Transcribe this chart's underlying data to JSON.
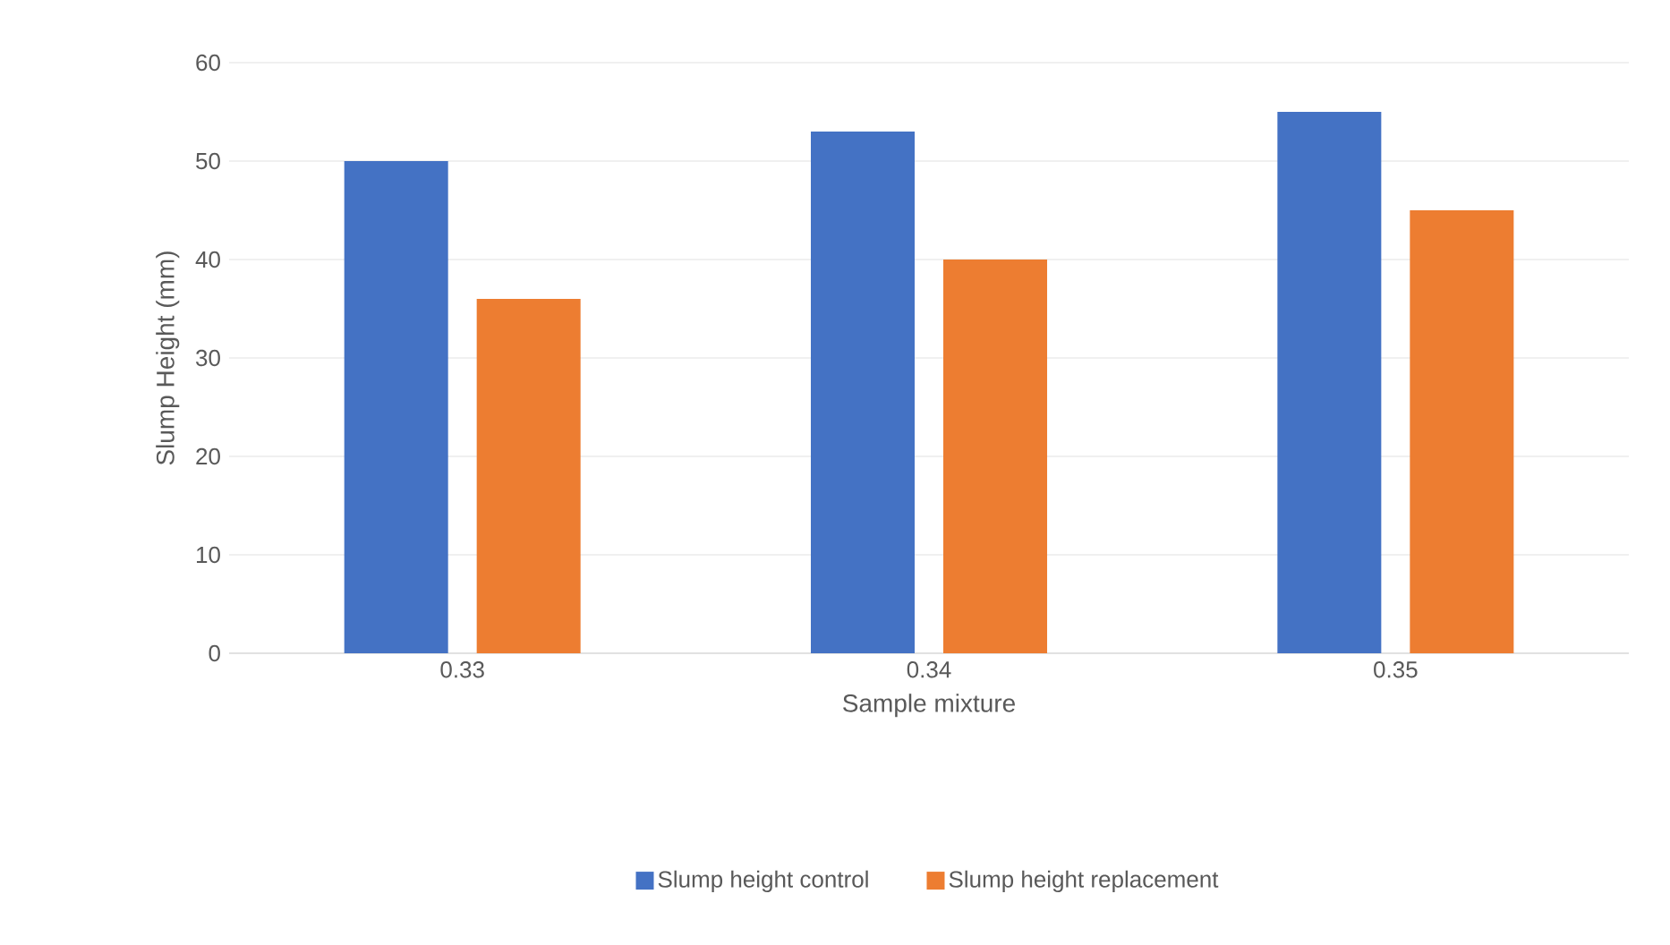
{
  "chart_data": {
    "type": "bar",
    "xlabel": "Sample mixture",
    "ylabel": "Slump Height (mm)",
    "categories": [
      "0.33",
      "0.34",
      "0.35"
    ],
    "series": [
      {
        "name": "Slump height control",
        "color": "#4472c4",
        "values": [
          50,
          53,
          55
        ]
      },
      {
        "name": "Slump height replacement",
        "color": "#ed7d31",
        "values": [
          36,
          40,
          45
        ]
      }
    ],
    "ylim": [
      0,
      60
    ],
    "yticks": [
      0,
      10,
      20,
      30,
      40,
      50,
      60
    ],
    "grid": "y",
    "legend": "bottom"
  }
}
